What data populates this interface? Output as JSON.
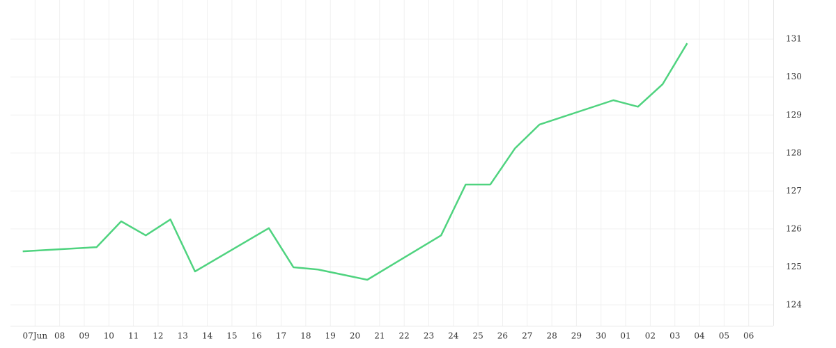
{
  "chart_data": {
    "type": "line",
    "x": [
      -0.5,
      2.5,
      3.5,
      4.5,
      5.5,
      6.5,
      9.5,
      10.5,
      11.5,
      13.5,
      16.5,
      17.5,
      18.5,
      19.5,
      20.5,
      23.5,
      24.5,
      25.5,
      26.5
    ],
    "series": [
      {
        "color": "#4fd37f",
        "values": [
          125.41,
          125.52,
          126.2,
          125.83,
          126.25,
          124.88,
          126.02,
          124.99,
          124.93,
          124.66,
          125.83,
          127.17,
          127.17,
          128.12,
          128.75,
          129.39,
          129.22,
          129.81,
          130.89
        ]
      }
    ],
    "xlim": [
      -1,
      30
    ],
    "xticks": [
      {
        "value": 0,
        "label": "07Jun"
      },
      {
        "value": 1,
        "label": "08"
      },
      {
        "value": 2,
        "label": "09"
      },
      {
        "value": 3,
        "label": "10"
      },
      {
        "value": 4,
        "label": "11"
      },
      {
        "value": 5,
        "label": "12"
      },
      {
        "value": 6,
        "label": "13"
      },
      {
        "value": 7,
        "label": "14"
      },
      {
        "value": 8,
        "label": "15"
      },
      {
        "value": 9,
        "label": "16"
      },
      {
        "value": 10,
        "label": "17"
      },
      {
        "value": 11,
        "label": "18"
      },
      {
        "value": 12,
        "label": "19"
      },
      {
        "value": 13,
        "label": "20"
      },
      {
        "value": 14,
        "label": "21"
      },
      {
        "value": 15,
        "label": "22"
      },
      {
        "value": 16,
        "label": "23"
      },
      {
        "value": 17,
        "label": "24"
      },
      {
        "value": 18,
        "label": "25"
      },
      {
        "value": 19,
        "label": "26"
      },
      {
        "value": 20,
        "label": "27"
      },
      {
        "value": 21,
        "label": "28"
      },
      {
        "value": 22,
        "label": "29"
      },
      {
        "value": 23,
        "label": "30"
      },
      {
        "value": 24,
        "label": "01"
      },
      {
        "value": 25,
        "label": "02"
      },
      {
        "value": 26,
        "label": "03"
      },
      {
        "value": 27,
        "label": "04"
      },
      {
        "value": 28,
        "label": "05"
      },
      {
        "value": 29,
        "label": "06"
      }
    ],
    "ylim": [
      123.45,
      132.03
    ],
    "yticks": [
      124,
      125,
      126,
      127,
      128,
      129,
      130,
      131
    ],
    "grid": true
  }
}
